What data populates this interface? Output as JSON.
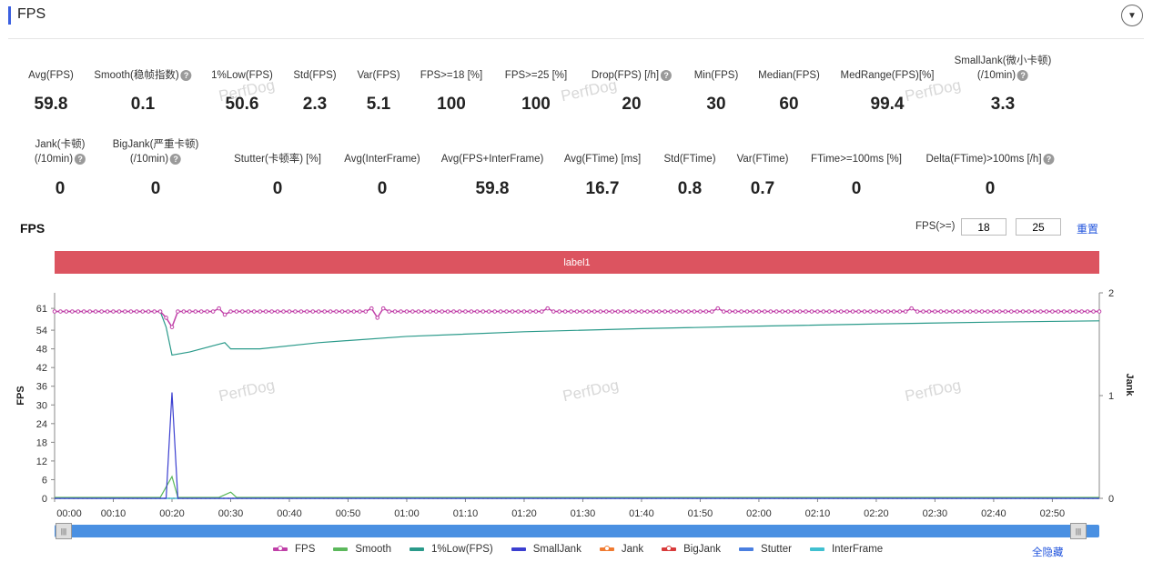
{
  "header": {
    "title": "FPS"
  },
  "metrics_row1": [
    {
      "label": "Avg(FPS)",
      "value": "59.8",
      "help": false
    },
    {
      "label": "Smooth(稳帧指数)",
      "value": "0.1",
      "help": true
    },
    {
      "label": "1%Low(FPS)",
      "value": "50.6",
      "help": false
    },
    {
      "label": "Std(FPS)",
      "value": "2.3",
      "help": false
    },
    {
      "label": "Var(FPS)",
      "value": "5.1",
      "help": false
    },
    {
      "label": "FPS>=18 [%]",
      "value": "100",
      "help": false
    },
    {
      "label": "FPS>=25 [%]",
      "value": "100",
      "help": false
    },
    {
      "label": "Drop(FPS) [/h]",
      "value": "20",
      "help": true
    },
    {
      "label": "Min(FPS)",
      "value": "30",
      "help": false
    },
    {
      "label": "Median(FPS)",
      "value": "60",
      "help": false
    },
    {
      "label": "MedRange(FPS)[%]",
      "value": "99.4",
      "help": false
    },
    {
      "label": "SmallJank(微小卡顿)",
      "label2": "(/10min)",
      "value": "3.3",
      "help": true
    }
  ],
  "metrics_row2": [
    {
      "label": "Jank(卡顿)",
      "label2": "(/10min)",
      "value": "0",
      "help": true
    },
    {
      "label": "BigJank(严重卡顿)",
      "label2": "(/10min)",
      "value": "0",
      "help": true
    },
    {
      "label": "Stutter(卡顿率) [%]",
      "value": "0",
      "help": false
    },
    {
      "label": "Avg(InterFrame)",
      "value": "0",
      "help": false
    },
    {
      "label": "Avg(FPS+InterFrame)",
      "value": "59.8",
      "help": false
    },
    {
      "label": "Avg(FTime) [ms]",
      "value": "16.7",
      "help": false
    },
    {
      "label": "Std(FTime)",
      "value": "0.8",
      "help": false
    },
    {
      "label": "Var(FTime)",
      "value": "0.7",
      "help": false
    },
    {
      "label": "FTime>=100ms [%]",
      "value": "0",
      "help": false
    },
    {
      "label": "Delta(FTime)>100ms [/h]",
      "value": "0",
      "help": true
    }
  ],
  "chart_section": {
    "title": "FPS",
    "threshold_label": "FPS(>=)",
    "threshold_low": "18",
    "threshold_high": "25",
    "reset_label": "重置",
    "band_label": "label1",
    "watermark": "PerfDog",
    "hide_all_label": "全隐藏",
    "slider_handle_glyph": "|||"
  },
  "chart_data": {
    "type": "line",
    "ylabel": "FPS",
    "y2label": "Jank",
    "ylim": [
      0,
      66
    ],
    "y2lim": [
      0,
      2
    ],
    "yticks": [
      0,
      6,
      12,
      18,
      24,
      30,
      36,
      42,
      48,
      54,
      61
    ],
    "y2ticks": [
      0,
      1,
      2
    ],
    "xticks": [
      "00:00",
      "00:10",
      "00:20",
      "00:30",
      "00:40",
      "00:50",
      "01:00",
      "01:10",
      "01:20",
      "01:30",
      "01:40",
      "01:50",
      "02:00",
      "02:10",
      "02:20",
      "02:30",
      "02:40",
      "02:50"
    ],
    "x_range_seconds": [
      0,
      178
    ],
    "grid": false,
    "legend_position": "bottom",
    "series": [
      {
        "name": "FPS",
        "color": "#c040a8",
        "points": [
          [
            0,
            60
          ],
          [
            18,
            60
          ],
          [
            19,
            58
          ],
          [
            20,
            55
          ],
          [
            21,
            60
          ],
          [
            27,
            60
          ],
          [
            28,
            61
          ],
          [
            29,
            59
          ],
          [
            30,
            60
          ],
          [
            53,
            60
          ],
          [
            54,
            61
          ],
          [
            55,
            58
          ],
          [
            56,
            61
          ],
          [
            57,
            60
          ],
          [
            83,
            60
          ],
          [
            84,
            61
          ],
          [
            85,
            60
          ],
          [
            112,
            60
          ],
          [
            113,
            61
          ],
          [
            114,
            60
          ],
          [
            145,
            60
          ],
          [
            146,
            61
          ],
          [
            147,
            60
          ],
          [
            178,
            60
          ]
        ]
      },
      {
        "name": "Smooth",
        "color": "#5cb85c",
        "points": [
          [
            0,
            0.3
          ],
          [
            18,
            0.3
          ],
          [
            20,
            7
          ],
          [
            21,
            0.3
          ],
          [
            28,
            0.3
          ],
          [
            30,
            2
          ],
          [
            31,
            0.3
          ],
          [
            178,
            0.3
          ]
        ]
      },
      {
        "name": "1%Low(FPS)",
        "color": "#2a9a8a",
        "points": [
          [
            0,
            60
          ],
          [
            18,
            60
          ],
          [
            19,
            55
          ],
          [
            20,
            46
          ],
          [
            23,
            47
          ],
          [
            27,
            49
          ],
          [
            29,
            50
          ],
          [
            30,
            48
          ],
          [
            35,
            48
          ],
          [
            45,
            50
          ],
          [
            60,
            52
          ],
          [
            80,
            53.5
          ],
          [
            100,
            54.5
          ],
          [
            120,
            55.3
          ],
          [
            140,
            56
          ],
          [
            160,
            56.6
          ],
          [
            178,
            57
          ]
        ]
      },
      {
        "name": "SmallJank",
        "color": "#3b3fd0",
        "points": [
          [
            0,
            0
          ],
          [
            19,
            0
          ],
          [
            20,
            34
          ],
          [
            21,
            0
          ],
          [
            178,
            0
          ]
        ]
      },
      {
        "name": "Jank",
        "color": "#f07a30",
        "points": [
          [
            0,
            0
          ],
          [
            178,
            0
          ]
        ]
      },
      {
        "name": "BigJank",
        "color": "#d83a3a",
        "points": [
          [
            0,
            0
          ],
          [
            178,
            0
          ]
        ]
      },
      {
        "name": "Stutter",
        "color": "#4a7fe0",
        "points": [
          [
            0,
            0
          ],
          [
            178,
            0
          ]
        ]
      },
      {
        "name": "InterFrame",
        "color": "#40c0d0",
        "points": [
          [
            0,
            0
          ],
          [
            178,
            0
          ]
        ]
      }
    ]
  },
  "legend": [
    {
      "name": "FPS",
      "color": "#c040a8",
      "dot": true
    },
    {
      "name": "Smooth",
      "color": "#5cb85c",
      "dot": false
    },
    {
      "name": "1%Low(FPS)",
      "color": "#2a9a8a",
      "dot": false
    },
    {
      "name": "SmallJank",
      "color": "#3b3fd0",
      "dot": false
    },
    {
      "name": "Jank",
      "color": "#f07a30",
      "dot": true
    },
    {
      "name": "BigJank",
      "color": "#d83a3a",
      "dot": true
    },
    {
      "name": "Stutter",
      "color": "#4a7fe0",
      "dot": false
    },
    {
      "name": "InterFrame",
      "color": "#40c0d0",
      "dot": false
    }
  ]
}
